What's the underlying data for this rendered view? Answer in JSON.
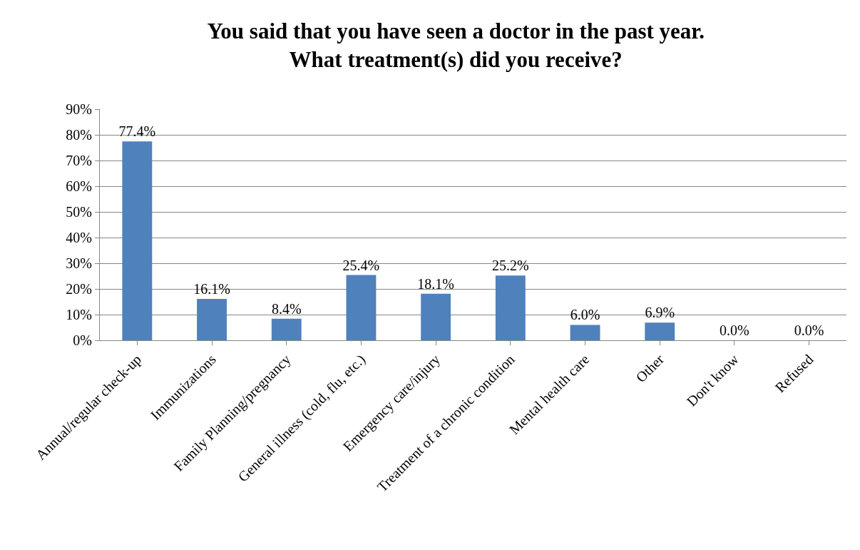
{
  "chart_data": {
    "type": "bar",
    "title": "You said that you have seen a doctor in the past year.\nWhat treatment(s) did you receive?",
    "categories": [
      "Annual/regular check-up",
      "Immunizations",
      "Family Planning/pregnancy",
      "General illness (cold, flu, etc.)",
      "Emergency care/injury",
      "Treatment of a chronic condition",
      "Mental health care",
      "Other",
      "Don't know",
      "Refused"
    ],
    "values": [
      77.4,
      16.1,
      8.4,
      25.4,
      18.1,
      25.2,
      6.0,
      6.9,
      0.0,
      0.0
    ],
    "value_labels": [
      "77.4%",
      "16.1%",
      "8.4%",
      "25.4%",
      "18.1%",
      "25.2%",
      "6.0%",
      "6.9%",
      "0.0%",
      "0.0%"
    ],
    "color": "#4f81bd",
    "ylim": [
      0,
      90
    ],
    "yticks": [
      {
        "value": 0,
        "label": "0%"
      },
      {
        "value": 10,
        "label": "10%"
      },
      {
        "value": 20,
        "label": "20%"
      },
      {
        "value": 30,
        "label": "30%"
      },
      {
        "value": 40,
        "label": "40%"
      },
      {
        "value": 50,
        "label": "50%"
      },
      {
        "value": 60,
        "label": "60%"
      },
      {
        "value": 70,
        "label": "70%"
      },
      {
        "value": 80,
        "label": "80%"
      },
      {
        "value": 90,
        "label": "90%"
      }
    ],
    "grid": "y"
  }
}
